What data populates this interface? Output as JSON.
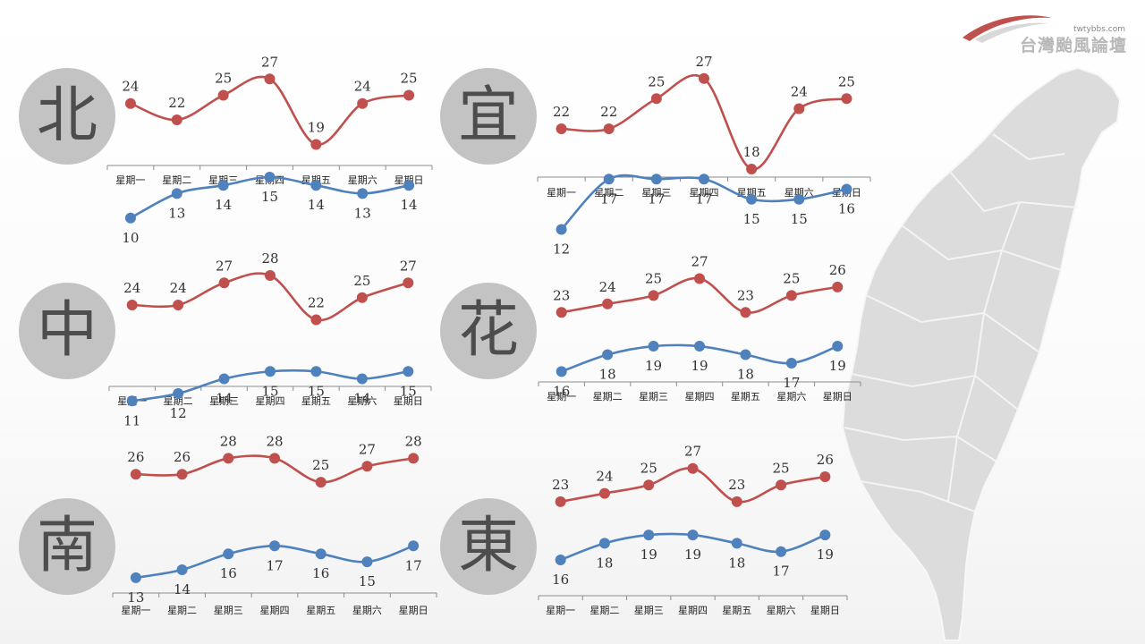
{
  "brand": {
    "url": "twtybbs.com",
    "name": "台灣颱風論壇"
  },
  "chart_data": [
    {
      "type": "line",
      "region": "北",
      "categories": [
        "星期一",
        "星期二",
        "星期三",
        "星期四",
        "星期五",
        "星期六",
        "星期日"
      ],
      "series": [
        {
          "values": [
            24,
            22,
            25,
            27,
            19,
            24,
            25
          ],
          "color": "#c0504d"
        },
        {
          "values": [
            10,
            13,
            14,
            15,
            14,
            13,
            14
          ],
          "color": "#4f81bd"
        }
      ]
    },
    {
      "type": "line",
      "region": "宜",
      "categories": [
        "星期一",
        "星期二",
        "星期三",
        "星期四",
        "星期五",
        "星期六",
        "星期日"
      ],
      "series": [
        {
          "values": [
            22,
            22,
            25,
            27,
            18,
            24,
            25
          ],
          "color": "#c0504d"
        },
        {
          "values": [
            12,
            17,
            17,
            17,
            15,
            15,
            16
          ],
          "color": "#4f81bd"
        }
      ]
    },
    {
      "type": "line",
      "region": "中",
      "categories": [
        "星期一",
        "星期二",
        "星期三",
        "星期四",
        "星期五",
        "星期六",
        "星期日"
      ],
      "series": [
        {
          "values": [
            24,
            24,
            27,
            28,
            22,
            25,
            27
          ],
          "color": "#c0504d"
        },
        {
          "values": [
            11,
            12,
            14,
            15,
            15,
            14,
            15
          ],
          "color": "#4f81bd"
        }
      ]
    },
    {
      "type": "line",
      "region": "花",
      "categories": [
        "星期一",
        "星期二",
        "星期三",
        "星期四",
        "星期五",
        "星期六",
        "星期日"
      ],
      "series": [
        {
          "values": [
            23,
            24,
            25,
            27,
            23,
            25,
            26
          ],
          "color": "#c0504d"
        },
        {
          "values": [
            16,
            18,
            19,
            19,
            18,
            17,
            19
          ],
          "color": "#4f81bd"
        }
      ]
    },
    {
      "type": "line",
      "region": "南",
      "categories": [
        "星期一",
        "星期二",
        "星期三",
        "星期四",
        "星期五",
        "星期六",
        "星期日"
      ],
      "series": [
        {
          "values": [
            26,
            26,
            28,
            28,
            25,
            27,
            28
          ],
          "color": "#c0504d"
        },
        {
          "values": [
            13,
            14,
            16,
            17,
            16,
            15,
            17
          ],
          "color": "#4f81bd"
        }
      ]
    },
    {
      "type": "line",
      "region": "東",
      "categories": [
        "星期一",
        "星期二",
        "星期三",
        "星期四",
        "星期五",
        "星期六",
        "星期日"
      ],
      "series": [
        {
          "values": [
            23,
            24,
            25,
            27,
            23,
            25,
            26
          ],
          "color": "#c0504d"
        },
        {
          "values": [
            16,
            18,
            19,
            19,
            18,
            17,
            19
          ],
          "color": "#4f81bd"
        }
      ]
    }
  ]
}
